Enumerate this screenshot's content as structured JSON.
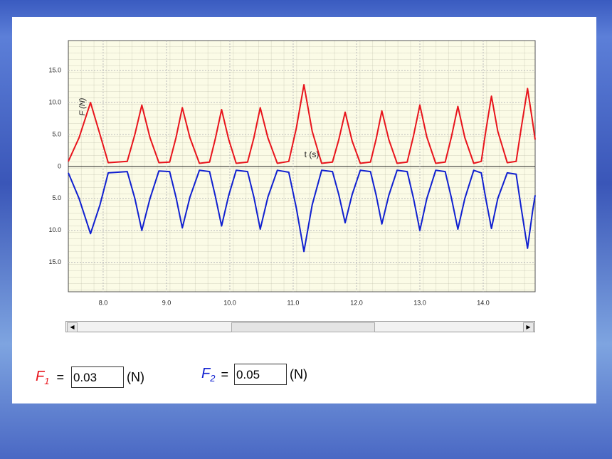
{
  "chart_data": {
    "type": "line",
    "y_label": "F (N)",
    "x_label": "t (s)",
    "xlim": [
      7.45,
      14.82
    ],
    "xticks": [
      {
        "value": 8,
        "label": "8.0"
      },
      {
        "value": 9,
        "label": "9.0"
      },
      {
        "value": 10,
        "label": "10.0"
      },
      {
        "value": 11,
        "label": "11.0"
      },
      {
        "value": 12,
        "label": "12.0"
      },
      {
        "value": 13,
        "label": "13.0"
      },
      {
        "value": 14,
        "label": "14.0"
      }
    ],
    "ylim": [
      -19.6,
      19.7
    ],
    "yticks": [
      {
        "value": 15,
        "label": "15.0"
      },
      {
        "value": 10,
        "label": "10.0"
      },
      {
        "value": 5,
        "label": "5.0"
      },
      0,
      {
        "value": -5,
        "label": "5.0"
      },
      {
        "value": -10,
        "label": "10.0"
      },
      {
        "value": -15,
        "label": "15.0"
      }
    ],
    "grid": true,
    "x": [
      7.45,
      7.62,
      7.8,
      7.95,
      8.08,
      8.38,
      8.5,
      8.61,
      8.74,
      8.88,
      9.05,
      9.15,
      9.25,
      9.37,
      9.52,
      9.68,
      9.77,
      9.87,
      9.98,
      10.1,
      10.28,
      10.38,
      10.48,
      10.6,
      10.75,
      10.93,
      11.05,
      11.17,
      11.3,
      11.45,
      11.62,
      11.72,
      11.82,
      11.93,
      12.06,
      12.22,
      12.31,
      12.4,
      12.51,
      12.64,
      12.8,
      12.9,
      13.0,
      13.11,
      13.25,
      13.4,
      13.5,
      13.6,
      13.71,
      13.85,
      13.97,
      14.04,
      14.13,
      14.23,
      14.38,
      14.52,
      14.6,
      14.7,
      14.78,
      14.82
    ],
    "series": [
      {
        "color": "#e8141c",
        "values": [
          0.8,
          4.5,
          10.0,
          5.0,
          0.6,
          0.8,
          5.0,
          9.6,
          4.5,
          0.6,
          0.7,
          4.5,
          9.2,
          4.5,
          0.5,
          0.7,
          4.3,
          8.9,
          4.3,
          0.5,
          0.7,
          4.5,
          9.2,
          4.5,
          0.5,
          0.8,
          6.0,
          12.8,
          5.5,
          0.5,
          0.7,
          4.2,
          8.5,
          4.0,
          0.5,
          0.7,
          4.3,
          8.7,
          4.2,
          0.5,
          0.7,
          4.8,
          9.6,
          4.6,
          0.5,
          0.7,
          4.7,
          9.4,
          4.5,
          0.5,
          0.8,
          5.5,
          11.0,
          5.5,
          0.6,
          0.8,
          6.0,
          12.2,
          7.0,
          4.2
        ]
      },
      {
        "color": "#1020d0",
        "values": [
          -1.0,
          -5,
          -10.5,
          -6,
          -1.0,
          -0.8,
          -5,
          -10.0,
          -5,
          -0.7,
          -0.8,
          -4.8,
          -9.6,
          -4.8,
          -0.6,
          -0.8,
          -4.6,
          -9.3,
          -4.6,
          -0.6,
          -0.8,
          -4.8,
          -9.8,
          -4.8,
          -0.6,
          -0.9,
          -6.5,
          -13.3,
          -6,
          -0.6,
          -0.8,
          -4.4,
          -8.8,
          -4.4,
          -0.6,
          -0.8,
          -4.5,
          -9.0,
          -4.5,
          -0.6,
          -0.8,
          -5,
          -10.0,
          -5,
          -0.6,
          -0.8,
          -5,
          -9.8,
          -5,
          -0.6,
          -1.0,
          -5,
          -9.7,
          -5,
          -1.0,
          -1.2,
          -6.5,
          -12.8,
          -7,
          -4.5
        ]
      }
    ]
  },
  "form": {
    "f1": {
      "symbol": "F",
      "sub": "1",
      "eq": "=",
      "value": "0.03",
      "unit": "(N)"
    },
    "f2": {
      "symbol": "F",
      "sub": "2",
      "eq": "=",
      "value": "0.05",
      "unit": "(N)"
    }
  }
}
